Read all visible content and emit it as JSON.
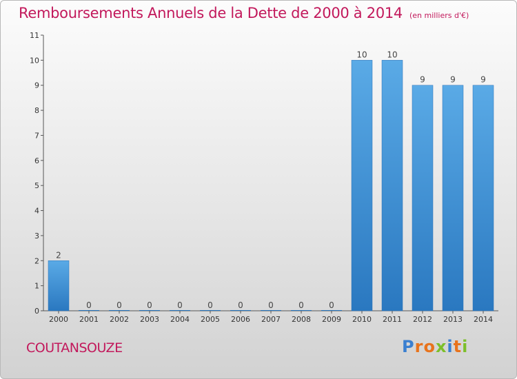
{
  "chart_data": {
    "type": "bar",
    "title": "Remboursements Annuels de la Dette de 2000 à 2014",
    "subtitle": "(en milliers d'€)",
    "categories": [
      "2000",
      "2001",
      "2002",
      "2003",
      "2004",
      "2005",
      "2006",
      "2007",
      "2008",
      "2009",
      "2010",
      "2011",
      "2012",
      "2013",
      "2014"
    ],
    "values": [
      2,
      0,
      0,
      0,
      0,
      0,
      0,
      0,
      0,
      0,
      10,
      10,
      9,
      9,
      9
    ],
    "data_labels": [
      "2",
      "0",
      "0",
      "0",
      "0",
      "0",
      "0",
      "0",
      "0",
      "0",
      "10",
      "10",
      "9",
      "9",
      "9"
    ],
    "yticks": [
      "0",
      "1",
      "2",
      "3",
      "4",
      "5",
      "6",
      "7",
      "8",
      "9",
      "10",
      "11"
    ],
    "ylim": [
      0,
      11
    ],
    "bar_color": "#3a8fd6",
    "text_color": "#c2185b",
    "grid": false
  },
  "footer": {
    "commune": "COUTANSOUZE",
    "brand_letters": [
      {
        "ch": "P",
        "color": "#3a7fd0"
      },
      {
        "ch": "r",
        "color": "#e8731c"
      },
      {
        "ch": "o",
        "color": "#e8731c"
      },
      {
        "ch": "x",
        "color": "#7cbf2a"
      },
      {
        "ch": "i",
        "color": "#3a7fd0"
      },
      {
        "ch": "t",
        "color": "#e8731c"
      },
      {
        "ch": "i",
        "color": "#7cbf2a"
      }
    ]
  }
}
